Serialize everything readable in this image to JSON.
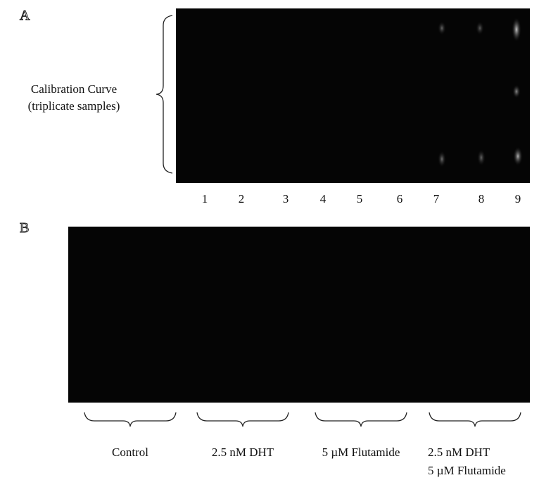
{
  "panel_a": {
    "letter": "A",
    "side_label": [
      "Calibration Curve",
      "(triplicate samples)"
    ],
    "lanes": [
      "1",
      "2",
      "3",
      "4",
      "5",
      "6",
      "7",
      "8",
      "9"
    ]
  },
  "panel_b": {
    "letter": "B",
    "groups": [
      [
        "Control"
      ],
      [
        "2.5 nM DHT"
      ],
      [
        "5 µM Flutamide"
      ],
      [
        "2.5 nM DHT",
        "5 µM Flutamide"
      ]
    ]
  }
}
